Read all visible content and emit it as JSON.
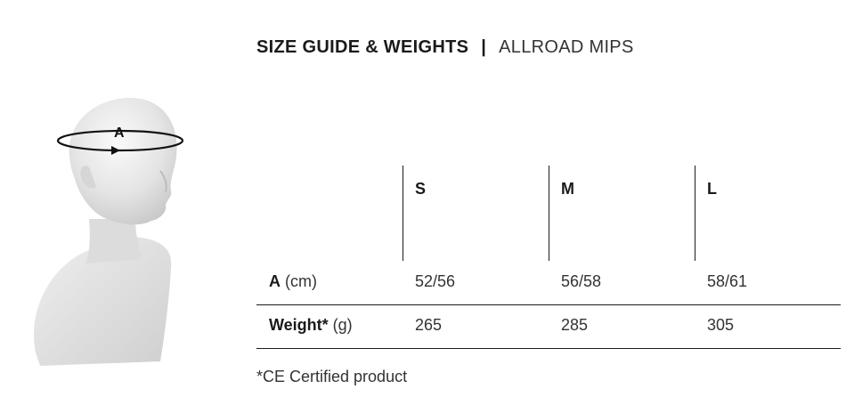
{
  "header": {
    "title": "SIZE GUIDE & WEIGHTS",
    "separator": "|",
    "model": "ALLROAD MIPS"
  },
  "figure": {
    "measure_label": "A",
    "icon": "head-measure-icon"
  },
  "table": {
    "sizes": [
      "S",
      "M",
      "L"
    ],
    "rows": [
      {
        "label": "A",
        "unit": "(cm)",
        "values": [
          "52/56",
          "56/58",
          "58/61"
        ]
      },
      {
        "label": "Weight*",
        "unit": "(g)",
        "values": [
          "265",
          "285",
          "305"
        ]
      }
    ]
  },
  "footnote": "*CE Certified product"
}
